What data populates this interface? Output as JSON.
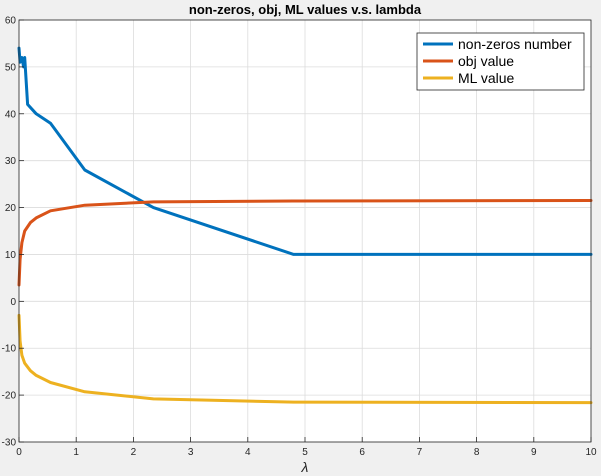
{
  "chart_data": {
    "type": "line",
    "title": "non-zeros, obj, ML values v.s. lambda",
    "xlabel": "λ",
    "ylabel": "",
    "xlim": [
      0,
      10
    ],
    "ylim": [
      -30,
      60
    ],
    "xticks": [
      0,
      1,
      2,
      3,
      4,
      5,
      6,
      7,
      8,
      9,
      10
    ],
    "yticks": [
      -30,
      -20,
      -10,
      0,
      10,
      20,
      30,
      40,
      50,
      60
    ],
    "grid": true,
    "legend_position": "top-right",
    "series": [
      {
        "name": "non-zeros number",
        "color": "#0072BD",
        "x": [
          0.0,
          0.02,
          0.05,
          0.08,
          0.1,
          0.15,
          0.3,
          0.55,
          1.15,
          2.35,
          4.8,
          10.0
        ],
        "y": [
          54,
          51,
          52,
          50,
          52,
          42,
          40,
          38,
          28,
          20,
          10,
          10
        ]
      },
      {
        "name": "obj value",
        "color": "#D95319",
        "x": [
          0.0,
          0.02,
          0.05,
          0.1,
          0.2,
          0.3,
          0.55,
          1.15,
          2.35,
          4.8,
          10.0
        ],
        "y": [
          3.5,
          9,
          12.5,
          15,
          16.8,
          17.8,
          19.3,
          20.5,
          21.2,
          21.4,
          21.5
        ]
      },
      {
        "name": "ML value",
        "color": "#EDB120",
        "x": [
          0.0,
          0.02,
          0.05,
          0.1,
          0.2,
          0.3,
          0.55,
          1.15,
          2.35,
          4.8,
          10.0
        ],
        "y": [
          -3,
          -8.5,
          -11.5,
          -13.2,
          -14.8,
          -15.8,
          -17.3,
          -19.3,
          -20.8,
          -21.5,
          -21.6
        ]
      }
    ]
  }
}
